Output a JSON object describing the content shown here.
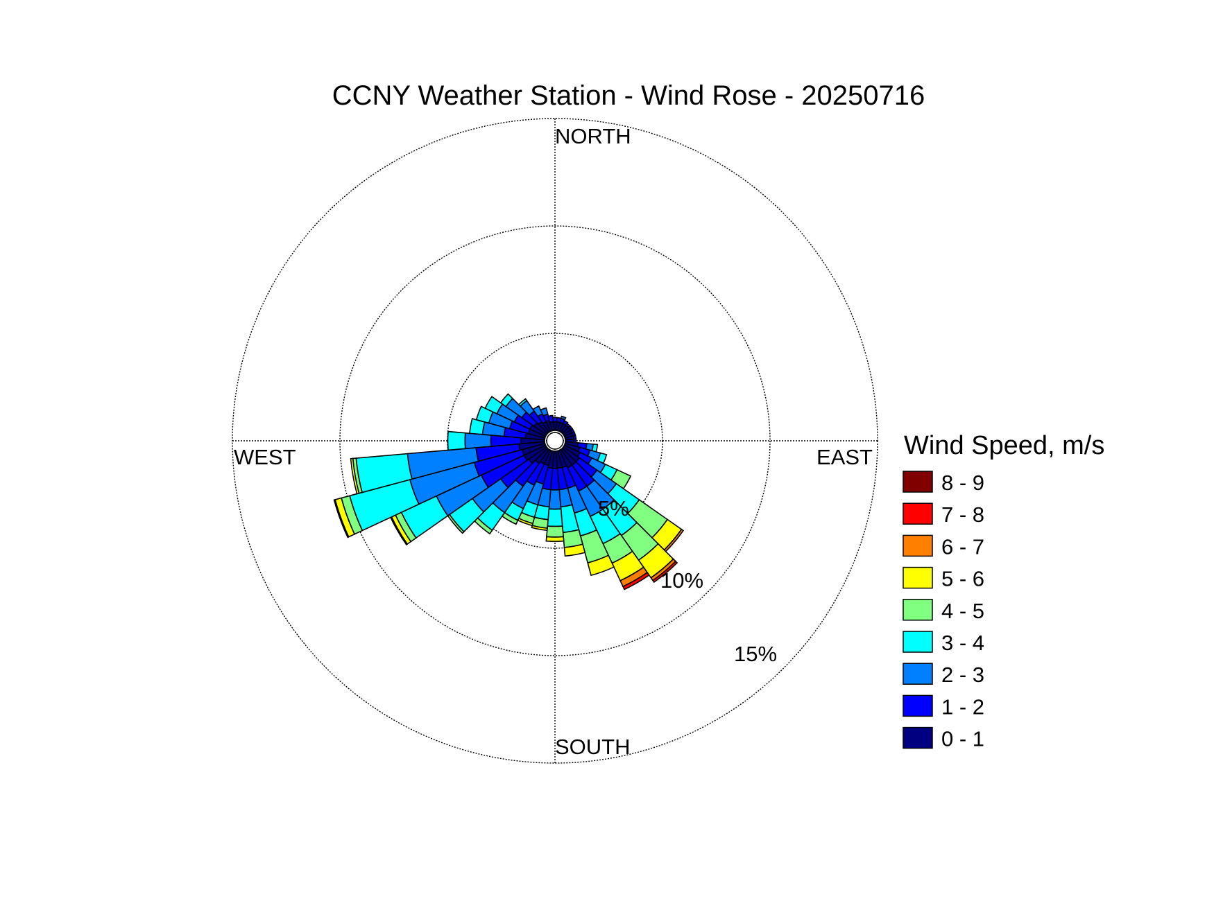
{
  "chart_data": {
    "type": "wind-rose",
    "title": "CCNY Weather Station - Wind Rose - 20250716",
    "directions": [
      "NORTH",
      "EAST",
      "SOUTH",
      "WEST"
    ],
    "radial_ticks": [
      {
        "value": 5,
        "label": "5%"
      },
      {
        "value": 10,
        "label": "10%"
      },
      {
        "value": 15,
        "label": "15%"
      }
    ],
    "r_max": 15,
    "grid": true,
    "legend": {
      "title": "Wind Speed, m/s",
      "position": "right",
      "bins": [
        {
          "label": "8 - 9",
          "color": "#800000"
        },
        {
          "label": "7 - 8",
          "color": "#ff0000"
        },
        {
          "label": "6 - 7",
          "color": "#ff8000"
        },
        {
          "label": "5 - 6",
          "color": "#ffff00"
        },
        {
          "label": "4 - 5",
          "color": "#80ff80"
        },
        {
          "label": "3 - 4",
          "color": "#00ffff"
        },
        {
          "label": "2 - 3",
          "color": "#0080ff"
        },
        {
          "label": "1 - 2",
          "color": "#0000ff"
        },
        {
          "label": "0 - 1",
          "color": "#000080"
        }
      ]
    },
    "bin_colors": [
      "#000080",
      "#0000ff",
      "#0080ff",
      "#00ffff",
      "#80ff80",
      "#ffff00",
      "#ff8000",
      "#ff0000",
      "#800000"
    ],
    "sector_width_deg": 10,
    "sectors": [
      {
        "dir": 0,
        "c": [
          0.4,
          0.2
        ]
      },
      {
        "dir": 10,
        "c": [
          0.4,
          0.2
        ]
      },
      {
        "dir": 20,
        "c": [
          0.4,
          0.2,
          0.1
        ]
      },
      {
        "dir": 30,
        "c": [
          0.4,
          0.15
        ]
      },
      {
        "dir": 40,
        "c": [
          0.4,
          0.1
        ]
      },
      {
        "dir": 50,
        "c": [
          0.4,
          0.1
        ]
      },
      {
        "dir": 60,
        "c": [
          0.4,
          0.1
        ]
      },
      {
        "dir": 70,
        "c": [
          0.4,
          0.1
        ]
      },
      {
        "dir": 80,
        "c": [
          0.4,
          0.1
        ]
      },
      {
        "dir": 90,
        "c": [
          0.4,
          0.1
        ]
      },
      {
        "dir": 100,
        "c": [
          0.6,
          0.4,
          0.3,
          0.2
        ]
      },
      {
        "dir": 110,
        "c": [
          0.7,
          0.5,
          0.5,
          0.3
        ]
      },
      {
        "dir": 120,
        "c": [
          0.8,
          0.6,
          0.7,
          0.6,
          0.7
        ]
      },
      {
        "dir": 130,
        "c": [
          0.9,
          1.0,
          1.1,
          1.3,
          1.6,
          0.8,
          0.1
        ]
      },
      {
        "dir": 140,
        "c": [
          0.9,
          1.2,
          1.3,
          1.5,
          1.4,
          1.0,
          0.15,
          0.1
        ]
      },
      {
        "dir": 150,
        "c": [
          0.9,
          1.2,
          1.3,
          1.4,
          1.0,
          0.9,
          0.3,
          0.15
        ]
      },
      {
        "dir": 160,
        "c": [
          0.8,
          1.0,
          1.2,
          1.1,
          1.3,
          0.6
        ]
      },
      {
        "dir": 170,
        "c": [
          0.8,
          1.0,
          0.8,
          1.2,
          0.7,
          0.4
        ]
      },
      {
        "dir": 180,
        "c": [
          0.8,
          1.0,
          0.9,
          0.8,
          0.5,
          0.2
        ]
      },
      {
        "dir": 190,
        "c": [
          0.8,
          1.0,
          0.8,
          0.6,
          0.4,
          0.1
        ]
      },
      {
        "dir": 200,
        "c": [
          0.7,
          0.9,
          1.0,
          0.6,
          0.3,
          0.1
        ]
      },
      {
        "dir": 210,
        "c": [
          0.7,
          1.1,
          1.2,
          0.6,
          0.2
        ]
      },
      {
        "dir": 220,
        "c": [
          0.8,
          1.3,
          1.5,
          1.0,
          0.2
        ]
      },
      {
        "dir": 230,
        "c": [
          1.0,
          1.6,
          1.6,
          1.3,
          0.1
        ]
      },
      {
        "dir": 240,
        "c": [
          1.1,
          2.2,
          2.3,
          1.8,
          0.3,
          0.2,
          0.05
        ]
      },
      {
        "dir": 250,
        "c": [
          1.1,
          2.3,
          3.1,
          2.9,
          0.4,
          0.3,
          0.05
        ]
      },
      {
        "dir": 260,
        "c": [
          1.2,
          2.0,
          3.2,
          2.4,
          0.15,
          0.1
        ]
      },
      {
        "dir": 270,
        "c": [
          1.1,
          1.4,
          1.2,
          0.8
        ]
      },
      {
        "dir": 280,
        "c": [
          0.9,
          1.0,
          1.0,
          0.6
        ]
      },
      {
        "dir": 290,
        "c": [
          0.8,
          0.9,
          1.0,
          0.6
        ]
      },
      {
        "dir": 300,
        "c": [
          0.8,
          0.8,
          0.9,
          0.6
        ]
      },
      {
        "dir": 310,
        "c": [
          0.7,
          0.7,
          0.9,
          0.3
        ]
      },
      {
        "dir": 320,
        "c": [
          0.6,
          0.6,
          0.6,
          0.1
        ]
      },
      {
        "dir": 330,
        "c": [
          0.5,
          0.4,
          0.4
        ]
      },
      {
        "dir": 340,
        "c": [
          0.5,
          0.3,
          0.3
        ]
      },
      {
        "dir": 350,
        "c": [
          0.4,
          0.3
        ]
      }
    ]
  }
}
